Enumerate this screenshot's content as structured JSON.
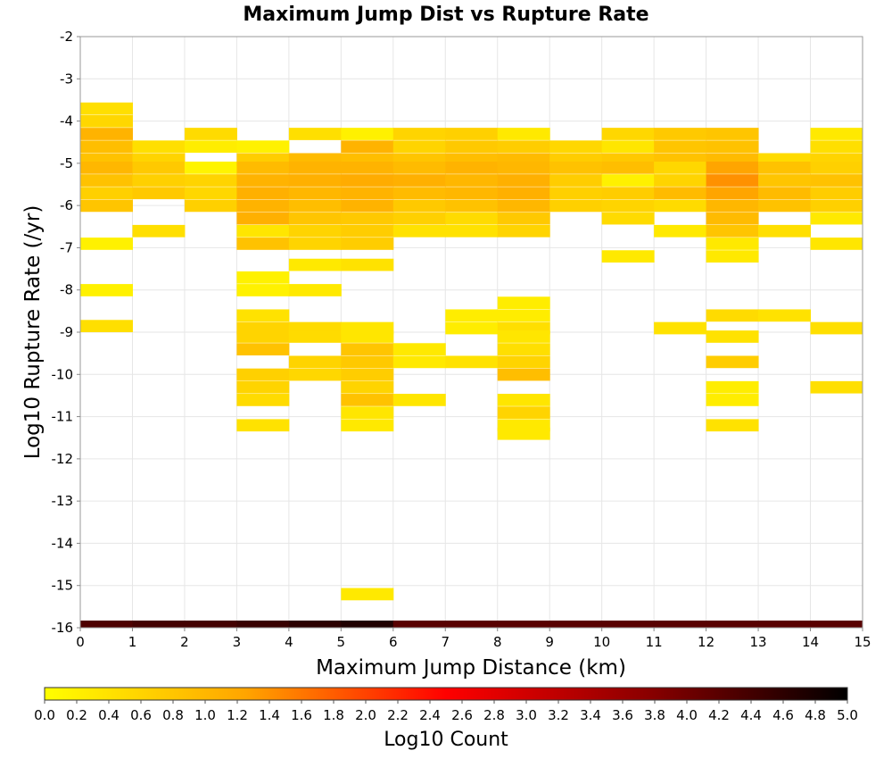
{
  "chart_data": {
    "type": "heatmap",
    "title": "Maximum Jump Dist vs Rupture Rate",
    "xlabel": "Maximum Jump Distance (km)",
    "ylabel": "Log10 Rupture Rate (/yr)",
    "xlim": [
      0,
      15
    ],
    "ylim": [
      -16,
      -2
    ],
    "x_ticks": [
      "0",
      "1",
      "2",
      "3",
      "4",
      "5",
      "6",
      "7",
      "8",
      "9",
      "10",
      "11",
      "12",
      "13",
      "14",
      "15"
    ],
    "y_ticks": [
      "-2",
      "-3",
      "-4",
      "-5",
      "-6",
      "-7",
      "-8",
      "-9",
      "-10",
      "-11",
      "-12",
      "-13",
      "-14",
      "-15",
      "-16"
    ],
    "x_bin_width": 1,
    "y_bin_height": 0.28,
    "grid": true,
    "colorbar": {
      "label": "Log10 Count",
      "min": 0,
      "max": 5,
      "ticks": [
        "0.0",
        "0.2",
        "0.4",
        "0.6",
        "0.8",
        "1.0",
        "1.2",
        "1.4",
        "1.6",
        "1.8",
        "2.0",
        "2.2",
        "2.4",
        "2.6",
        "2.8",
        "3.0",
        "3.2",
        "3.4",
        "3.6",
        "3.8",
        "4.0",
        "4.2",
        "4.4",
        "4.6",
        "4.8",
        "5.0"
      ],
      "colors": [
        "#ffff00",
        "#ffa500",
        "#ff0000",
        "#8b0000",
        "#000000"
      ]
    },
    "marginal_row": {
      "y": -16,
      "values": [
        4.3,
        4.4,
        4.4,
        4.5,
        4.6,
        4.7,
        4.2,
        4.2,
        4.2,
        4.2,
        4.2,
        4.2,
        4.2,
        4.2,
        4.2
      ]
    },
    "cells": [
      [
        0,
        -3.7,
        0.45
      ],
      [
        0,
        -4.0,
        0.55
      ],
      [
        0,
        -4.3,
        1.05
      ],
      [
        0,
        -4.6,
        0.9
      ],
      [
        0,
        -4.9,
        0.85
      ],
      [
        0,
        -5.1,
        1.0
      ],
      [
        0,
        -5.4,
        0.85
      ],
      [
        0,
        -5.7,
        0.65
      ],
      [
        0,
        -6.0,
        0.8
      ],
      [
        0,
        -6.9,
        0.2
      ],
      [
        0,
        -8.0,
        0.2
      ],
      [
        0,
        -8.85,
        0.45
      ],
      [
        1,
        -4.6,
        0.45
      ],
      [
        1,
        -4.9,
        0.6
      ],
      [
        1,
        -5.1,
        0.75
      ],
      [
        1,
        -5.4,
        0.65
      ],
      [
        1,
        -5.7,
        0.75
      ],
      [
        1,
        -6.6,
        0.45
      ],
      [
        2,
        -4.3,
        0.5
      ],
      [
        2,
        -4.6,
        0.25
      ],
      [
        2,
        -5.1,
        0.15
      ],
      [
        2,
        -5.4,
        0.6
      ],
      [
        2,
        -5.7,
        0.55
      ],
      [
        2,
        -6.0,
        0.65
      ],
      [
        3,
        -4.6,
        0.2
      ],
      [
        3,
        -4.9,
        0.7
      ],
      [
        3,
        -5.1,
        0.95
      ],
      [
        3,
        -5.4,
        1.05
      ],
      [
        3,
        -5.7,
        1.1
      ],
      [
        3,
        -6.0,
        1.05
      ],
      [
        3,
        -6.3,
        1.1
      ],
      [
        3,
        -6.6,
        0.35
      ],
      [
        3,
        -6.9,
        0.85
      ],
      [
        3,
        -7.7,
        0.2
      ],
      [
        3,
        -8.0,
        0.2
      ],
      [
        3,
        -8.6,
        0.4
      ],
      [
        3,
        -8.9,
        0.6
      ],
      [
        3,
        -9.1,
        0.6
      ],
      [
        3,
        -9.4,
        0.85
      ],
      [
        3,
        -10.0,
        0.65
      ],
      [
        3,
        -10.3,
        0.6
      ],
      [
        3,
        -10.6,
        0.5
      ],
      [
        3,
        -11.2,
        0.4
      ],
      [
        4,
        -4.3,
        0.45
      ],
      [
        4,
        -4.9,
        0.95
      ],
      [
        4,
        -5.1,
        1.05
      ],
      [
        4,
        -5.4,
        1.1
      ],
      [
        4,
        -5.7,
        1.0
      ],
      [
        4,
        -6.0,
        0.9
      ],
      [
        4,
        -6.3,
        0.8
      ],
      [
        4,
        -6.6,
        0.6
      ],
      [
        4,
        -6.9,
        0.6
      ],
      [
        4,
        -7.4,
        0.3
      ],
      [
        4,
        -8.0,
        0.3
      ],
      [
        4,
        -8.9,
        0.5
      ],
      [
        4,
        -9.1,
        0.5
      ],
      [
        4,
        -9.7,
        0.6
      ],
      [
        4,
        -10.0,
        0.55
      ],
      [
        5,
        -4.3,
        0.2
      ],
      [
        5,
        -4.6,
        1.05
      ],
      [
        5,
        -4.9,
        0.9
      ],
      [
        5,
        -5.1,
        1.05
      ],
      [
        5,
        -5.4,
        1.15
      ],
      [
        5,
        -5.7,
        1.05
      ],
      [
        5,
        -6.0,
        1.05
      ],
      [
        5,
        -6.3,
        0.75
      ],
      [
        5,
        -6.6,
        0.7
      ],
      [
        5,
        -6.9,
        0.7
      ],
      [
        5,
        -7.4,
        0.4
      ],
      [
        5,
        -8.9,
        0.35
      ],
      [
        5,
        -9.1,
        0.35
      ],
      [
        5,
        -9.4,
        0.8
      ],
      [
        5,
        -9.7,
        0.75
      ],
      [
        5,
        -10.0,
        0.7
      ],
      [
        5,
        -10.3,
        0.6
      ],
      [
        5,
        -10.6,
        0.85
      ],
      [
        5,
        -10.9,
        0.35
      ],
      [
        5,
        -11.2,
        0.3
      ],
      [
        5,
        -15.2,
        0.3
      ],
      [
        6,
        -4.3,
        0.6
      ],
      [
        6,
        -4.6,
        0.6
      ],
      [
        6,
        -4.9,
        0.8
      ],
      [
        6,
        -5.1,
        0.95
      ],
      [
        6,
        -5.4,
        1.1
      ],
      [
        6,
        -5.7,
        0.95
      ],
      [
        6,
        -6.0,
        0.75
      ],
      [
        6,
        -6.3,
        0.65
      ],
      [
        6,
        -6.6,
        0.4
      ],
      [
        6,
        -9.4,
        0.3
      ],
      [
        6,
        -9.7,
        0.3
      ],
      [
        6,
        -10.6,
        0.35
      ],
      [
        7,
        -4.3,
        0.65
      ],
      [
        7,
        -4.6,
        0.75
      ],
      [
        7,
        -4.9,
        0.9
      ],
      [
        7,
        -5.1,
        1.05
      ],
      [
        7,
        -5.4,
        1.0
      ],
      [
        7,
        -5.7,
        1.0
      ],
      [
        7,
        -6.0,
        0.85
      ],
      [
        7,
        -6.3,
        0.5
      ],
      [
        7,
        -6.6,
        0.4
      ],
      [
        7,
        -8.6,
        0.25
      ],
      [
        7,
        -8.9,
        0.25
      ],
      [
        7,
        -9.7,
        0.4
      ],
      [
        8,
        -4.3,
        0.3
      ],
      [
        8,
        -4.6,
        0.7
      ],
      [
        8,
        -4.9,
        0.95
      ],
      [
        8,
        -5.1,
        1.0
      ],
      [
        8,
        -5.4,
        1.1
      ],
      [
        8,
        -5.7,
        1.1
      ],
      [
        8,
        -6.0,
        1.0
      ],
      [
        8,
        -6.3,
        0.75
      ],
      [
        8,
        -6.6,
        0.6
      ],
      [
        8,
        -8.3,
        0.25
      ],
      [
        8,
        -8.6,
        0.25
      ],
      [
        8,
        -8.9,
        0.45
      ],
      [
        8,
        -9.1,
        0.35
      ],
      [
        8,
        -9.4,
        0.45
      ],
      [
        8,
        -9.7,
        0.6
      ],
      [
        8,
        -10.0,
        0.9
      ],
      [
        8,
        -10.6,
        0.35
      ],
      [
        8,
        -10.9,
        0.6
      ],
      [
        8,
        -11.2,
        0.3
      ],
      [
        8,
        -11.4,
        0.3
      ],
      [
        9,
        -4.6,
        0.55
      ],
      [
        9,
        -4.9,
        0.7
      ],
      [
        9,
        -5.1,
        0.85
      ],
      [
        9,
        -5.4,
        0.7
      ],
      [
        9,
        -5.7,
        0.65
      ],
      [
        9,
        -6.0,
        0.65
      ],
      [
        10,
        -4.3,
        0.55
      ],
      [
        10,
        -4.6,
        0.35
      ],
      [
        10,
        -4.9,
        0.75
      ],
      [
        10,
        -5.1,
        0.9
      ],
      [
        10,
        -5.4,
        0.2
      ],
      [
        10,
        -5.7,
        0.7
      ],
      [
        10,
        -6.0,
        0.6
      ],
      [
        10,
        -6.3,
        0.5
      ],
      [
        10,
        -7.2,
        0.3
      ],
      [
        11,
        -4.3,
        0.75
      ],
      [
        11,
        -4.6,
        0.8
      ],
      [
        11,
        -4.9,
        0.85
      ],
      [
        11,
        -5.1,
        0.55
      ],
      [
        11,
        -5.4,
        0.6
      ],
      [
        11,
        -5.7,
        0.95
      ],
      [
        11,
        -6.0,
        0.5
      ],
      [
        11,
        -6.6,
        0.3
      ],
      [
        11,
        -8.9,
        0.4
      ],
      [
        12,
        -4.3,
        0.8
      ],
      [
        12,
        -4.6,
        0.85
      ],
      [
        12,
        -4.9,
        0.95
      ],
      [
        12,
        -5.1,
        1.25
      ],
      [
        12,
        -5.4,
        1.4
      ],
      [
        12,
        -5.7,
        1.25
      ],
      [
        12,
        -6.0,
        1.0
      ],
      [
        12,
        -6.3,
        0.95
      ],
      [
        12,
        -6.6,
        0.8
      ],
      [
        12,
        -6.9,
        0.3
      ],
      [
        12,
        -7.2,
        0.3
      ],
      [
        12,
        -8.6,
        0.5
      ],
      [
        12,
        -9.1,
        0.4
      ],
      [
        12,
        -9.7,
        0.7
      ],
      [
        12,
        -10.3,
        0.25
      ],
      [
        12,
        -10.6,
        0.25
      ],
      [
        12,
        -11.2,
        0.4
      ],
      [
        13,
        -4.9,
        0.5
      ],
      [
        13,
        -5.1,
        0.85
      ],
      [
        13,
        -5.4,
        0.8
      ],
      [
        13,
        -5.7,
        0.95
      ],
      [
        13,
        -6.0,
        0.85
      ],
      [
        13,
        -6.6,
        0.45
      ],
      [
        13,
        -8.6,
        0.4
      ],
      [
        14,
        -4.3,
        0.3
      ],
      [
        14,
        -4.6,
        0.45
      ],
      [
        14,
        -4.9,
        0.6
      ],
      [
        14,
        -5.1,
        0.65
      ],
      [
        14,
        -5.4,
        0.85
      ],
      [
        14,
        -5.7,
        0.7
      ],
      [
        14,
        -6.0,
        0.65
      ],
      [
        14,
        -6.3,
        0.3
      ],
      [
        14,
        -6.9,
        0.35
      ],
      [
        14,
        -8.9,
        0.45
      ],
      [
        14,
        -10.3,
        0.45
      ]
    ]
  }
}
